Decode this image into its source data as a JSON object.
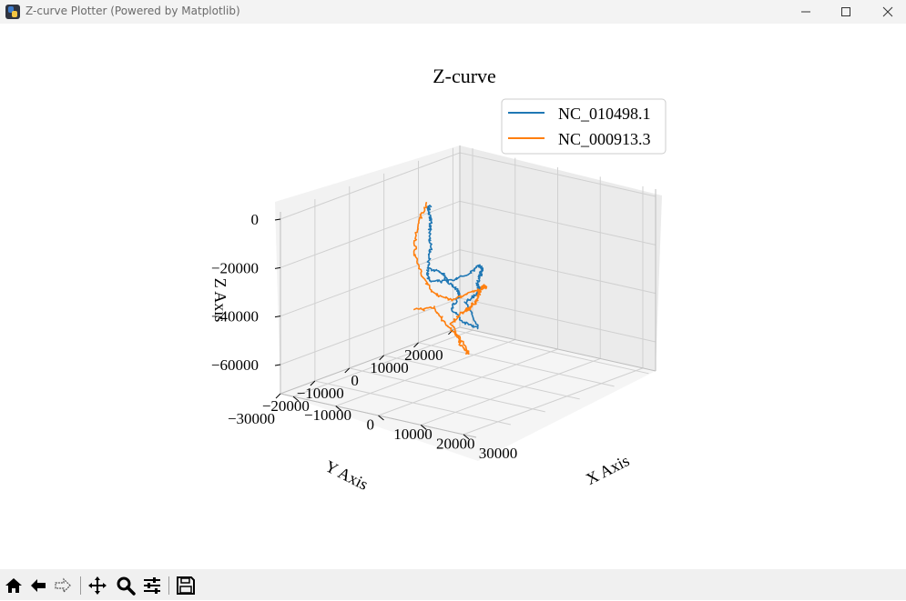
{
  "window": {
    "title": "Z-curve Plotter (Powered by Matplotlib)",
    "app_icon": "python-icon",
    "controls": [
      "minimize-icon",
      "maximize-icon",
      "close-icon"
    ]
  },
  "toolbar": {
    "buttons": [
      "home-icon",
      "back-icon",
      "forward-icon",
      "pan-icon",
      "zoom-icon",
      "configure-subplots-icon",
      "save-icon"
    ]
  },
  "chart_data": {
    "type": "line",
    "projection": "3d",
    "title": "Z-curve",
    "xlabel": "X Axis",
    "ylabel": "Y Axis",
    "zlabel": "Z Axis",
    "xticks": [
      "−10000",
      "0",
      "10000",
      "20000",
      "30000"
    ],
    "yticks": [
      "20000",
      "10000",
      "0",
      "−10000",
      "−20000",
      "−30000"
    ],
    "zticks": [
      "0",
      "−20000",
      "−40000",
      "−60000"
    ],
    "xlim": [
      -13000,
      33000
    ],
    "ylim": [
      -30000,
      22000
    ],
    "zlim": [
      -72000,
      3000
    ],
    "grid": true,
    "legend_position": "top-right",
    "series": [
      {
        "name": "NC_010498.1",
        "color": "#1f77b4",
        "points": [
          [
            -12000,
            12000,
            -42000
          ],
          [
            -9000,
            12000,
            -43000
          ],
          [
            -6000,
            11000,
            -46000
          ],
          [
            -3000,
            9000,
            -46000
          ],
          [
            0,
            6000,
            -45000
          ],
          [
            -2000,
            6000,
            -52000
          ],
          [
            1000,
            6000,
            -56000
          ],
          [
            5000,
            5000,
            -56000
          ],
          [
            3000,
            4000,
            -46000
          ],
          [
            6000,
            2000,
            -42000
          ],
          [
            9000,
            0,
            -38000
          ],
          [
            11000,
            -2000,
            -34000
          ],
          [
            13000,
            -5000,
            -30000
          ],
          [
            15000,
            -7000,
            -26000
          ],
          [
            17000,
            -9000,
            -22000
          ],
          [
            20000,
            -12000,
            -17000
          ],
          [
            22000,
            -15000,
            -14000
          ],
          [
            23000,
            -17000,
            -12000
          ],
          [
            22000,
            -19000,
            -15000
          ],
          [
            20000,
            -22000,
            -17000
          ],
          [
            17000,
            -24000,
            -17000
          ],
          [
            15000,
            -22000,
            -15000
          ],
          [
            13000,
            -19000,
            -12000
          ],
          [
            11000,
            -16000,
            -10000
          ],
          [
            9000,
            -14000,
            -5000
          ],
          [
            7000,
            -11000,
            -3000
          ],
          [
            5000,
            -9000,
            -2000
          ],
          [
            3000,
            -7000,
            -1000
          ],
          [
            2000,
            -5000,
            -2000
          ]
        ]
      },
      {
        "name": "NC_000913.3",
        "color": "#ff7f0e",
        "points": [
          [
            -13000,
            9000,
            -58000
          ],
          [
            -10000,
            11000,
            -57000
          ],
          [
            -9000,
            12000,
            -62000
          ],
          [
            -6000,
            12000,
            -66000
          ],
          [
            -3000,
            10000,
            -69000
          ],
          [
            0,
            8000,
            -70000
          ],
          [
            2000,
            6000,
            -68000
          ],
          [
            -2000,
            6000,
            -58000
          ],
          [
            1000,
            5000,
            -52000
          ],
          [
            4000,
            3000,
            -48000
          ],
          [
            7000,
            0,
            -45000
          ],
          [
            9000,
            -2000,
            -42000
          ],
          [
            12000,
            -4000,
            -38000
          ],
          [
            14000,
            -6000,
            -34000
          ],
          [
            16000,
            -8000,
            -30000
          ],
          [
            19000,
            -11000,
            -26000
          ],
          [
            21000,
            -13000,
            -23000
          ],
          [
            23000,
            -15000,
            -22000
          ],
          [
            22000,
            -18000,
            -23000
          ],
          [
            19000,
            -20000,
            -26000
          ],
          [
            16000,
            -22000,
            -23000
          ],
          [
            12000,
            -20000,
            -18000
          ],
          [
            8000,
            -17000,
            -13000
          ],
          [
            5000,
            -13000,
            -9000
          ],
          [
            3000,
            -9000,
            -4000
          ],
          [
            2000,
            -6000,
            0
          ]
        ]
      }
    ]
  }
}
